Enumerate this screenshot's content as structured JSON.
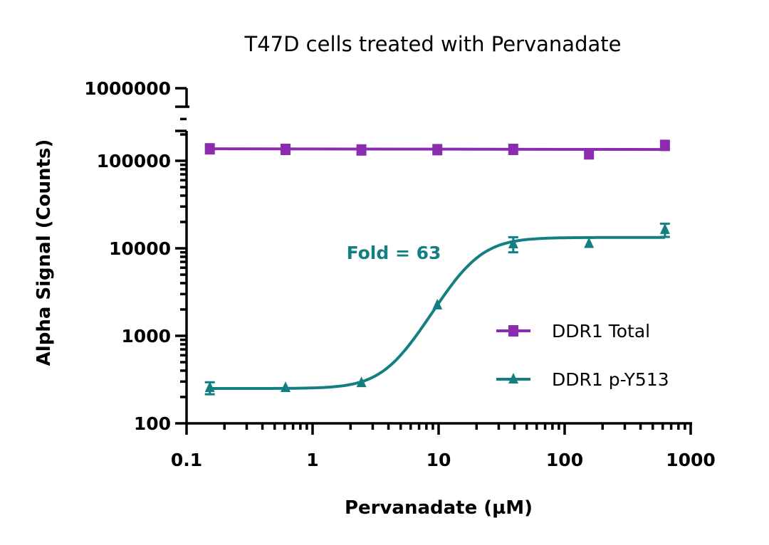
{
  "chart_data": {
    "type": "line",
    "title": "T47D cells treated with Pervanadate",
    "xlabel": "Pervanadate (µM)",
    "ylabel": "Alpha Signal (Counts)",
    "x_scale": "log",
    "y_scale": "log",
    "xlim": [
      0.1,
      1000
    ],
    "ylim": [
      100,
      1000000
    ],
    "y_axis_break": [
      100000,
      1000000
    ],
    "x_ticks": [
      "0.1",
      "1",
      "10",
      "100",
      "1000"
    ],
    "y_ticks": [
      "100",
      "1000",
      "10000",
      "100000",
      "1000000"
    ],
    "grid": false,
    "legend_position": "right",
    "annotation": "Fold = 63",
    "x": [
      0.153,
      0.61,
      2.44,
      9.77,
      39.1,
      156,
      625
    ],
    "series": [
      {
        "name": "DDR1 Total",
        "marker": "square",
        "color": "#8b2cb0",
        "values": [
          137000,
          135000,
          133000,
          134000,
          135000,
          120000,
          150000
        ]
      },
      {
        "name": "DDR1 p-Y513",
        "marker": "triangle",
        "color": "#137f83",
        "values": [
          255,
          255,
          290,
          2240,
          11200,
          11300,
          16300
        ],
        "error": [
          40,
          0,
          0,
          0,
          2200,
          0,
          2800
        ]
      }
    ]
  }
}
